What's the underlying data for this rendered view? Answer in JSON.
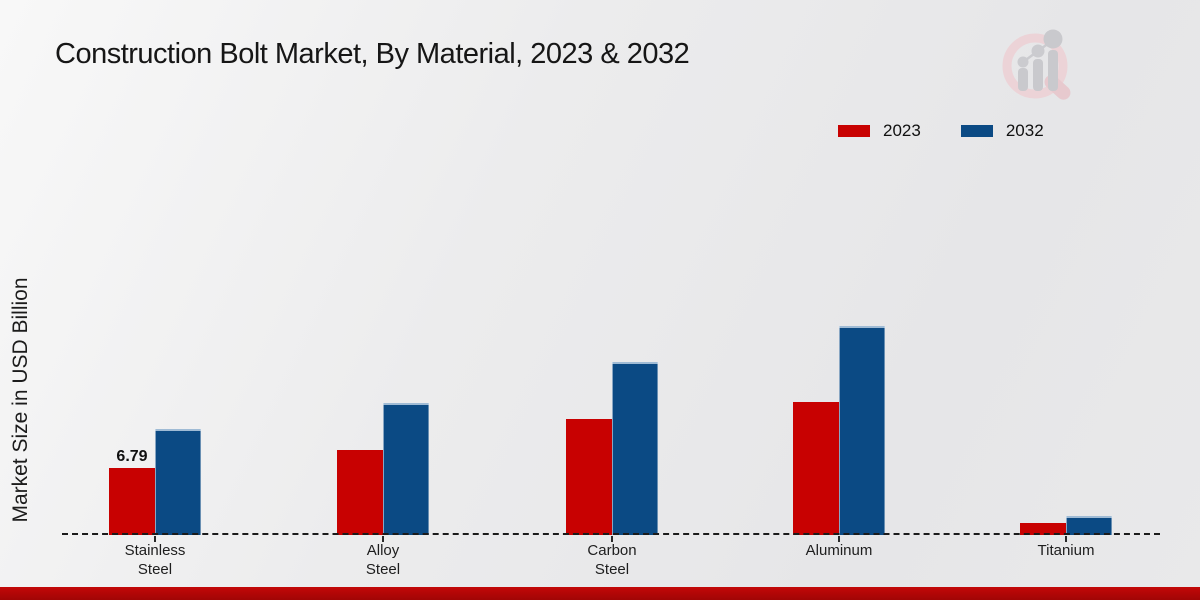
{
  "title": "Construction Bolt Market, By Material, 2023 & 2032",
  "y_axis_label": "Market Size in USD Billion",
  "legend": {
    "position": "top-right",
    "items": [
      {
        "label": "2023",
        "color": "#c80101"
      },
      {
        "label": "2032",
        "color": "#0b4a84"
      }
    ]
  },
  "colors": {
    "series_2023": "#c80101",
    "series_2032": "#0b4a84",
    "baseline": "#1b1b1b",
    "bottom_bar": "#b30606",
    "background": "#eaeaeb"
  },
  "icons": {
    "brand_logo": "magnifier-bar-chart-watermark"
  },
  "chart_data": {
    "type": "bar",
    "title": "Construction Bolt Market, By Material, 2023 & 2032",
    "xlabel": "",
    "ylabel": "Market Size in USD Billion",
    "categories": [
      "Stainless Steel",
      "Alloy Steel",
      "Carbon Steel",
      "Aluminum",
      "Titanium"
    ],
    "category_label_lines": [
      [
        "Stainless",
        "Steel"
      ],
      [
        "Alloy",
        "Steel"
      ],
      [
        "Carbon",
        "Steel"
      ],
      [
        "Aluminum"
      ],
      [
        "Titanium"
      ]
    ],
    "series": [
      {
        "name": "2023",
        "color": "#c80101",
        "values": [
          6.79,
          8.6,
          11.8,
          13.5,
          1.2
        ]
      },
      {
        "name": "2032",
        "color": "#0b4a84",
        "values": [
          10.7,
          13.4,
          17.5,
          21.2,
          1.9
        ]
      }
    ],
    "value_annotations": [
      {
        "series_index": 0,
        "category_index": 0,
        "text": "6.79"
      }
    ],
    "ylim": [
      0,
      22
    ],
    "grid": false,
    "legend_position": "top-right",
    "baseline_style": "dashed",
    "y_axis_ticks_visible": false
  }
}
